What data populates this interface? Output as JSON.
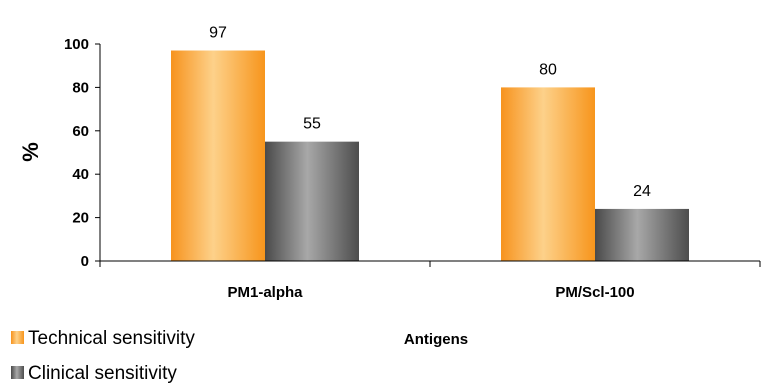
{
  "chart_data": {
    "type": "bar",
    "categories": [
      "PM1-alpha",
      "PM/Scl-100"
    ],
    "series": [
      {
        "name": "Technical sensitivity",
        "values": [
          97,
          80
        ],
        "color": "#f7a024"
      },
      {
        "name": "Clinical sensitivity",
        "values": [
          55,
          24
        ],
        "color": "#707070"
      }
    ],
    "ylabel": "%",
    "xlabel": "Antigens",
    "ylim": [
      0,
      100
    ],
    "yticks": [
      "0",
      "20",
      "40",
      "60",
      "80",
      "100"
    ],
    "data_labels": [
      [
        "97",
        "80"
      ],
      [
        "55",
        "24"
      ]
    ],
    "grid": false,
    "legend_position": "bottom-left"
  }
}
